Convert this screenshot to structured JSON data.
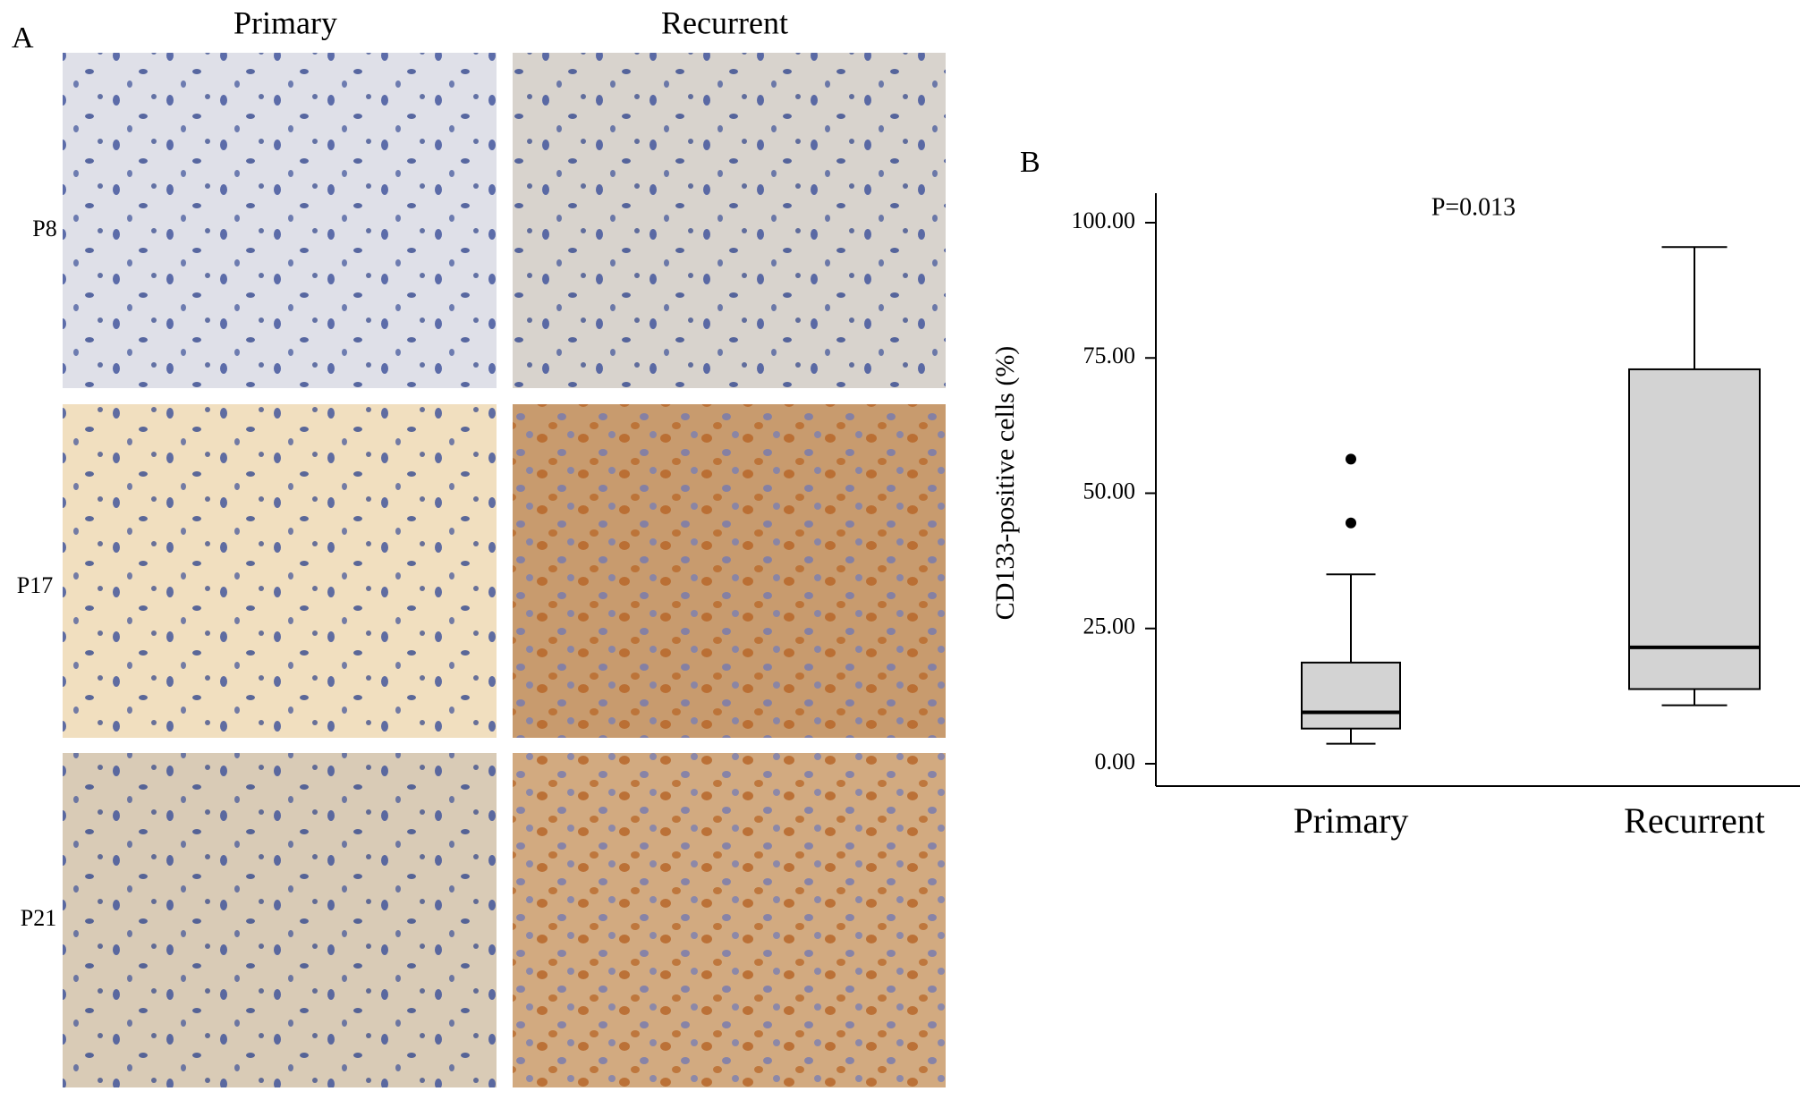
{
  "panel_a": {
    "label": "A",
    "columns": [
      "Primary",
      "Recurrent"
    ],
    "rows": [
      "P8",
      "P17",
      "P21"
    ]
  },
  "chart_data": {
    "type": "box",
    "label": "B",
    "annotation": "P=0.013",
    "y_label": "CD133-positive cells (%)",
    "categories": [
      "Primary",
      "Recurrent"
    ],
    "boxes": [
      {
        "min": 3.7,
        "q1": 6.5,
        "median": 9.5,
        "q3": 18.7,
        "max": 35,
        "outliers": [
          44.5,
          56.3
        ]
      },
      {
        "min": 10.8,
        "q1": 13.8,
        "median": 21.5,
        "q3": 72.9,
        "max": 95.5,
        "outliers": []
      }
    ],
    "color": "#d3d3d3",
    "ylim": [
      0,
      100
    ],
    "yticks": [
      {
        "value": 0,
        "label": "0.00"
      },
      {
        "value": 25,
        "label": "25.00"
      },
      {
        "value": 50,
        "label": "50.00"
      },
      {
        "value": 75,
        "label": "75.00"
      },
      {
        "value": 100,
        "label": "100.00"
      }
    ]
  }
}
